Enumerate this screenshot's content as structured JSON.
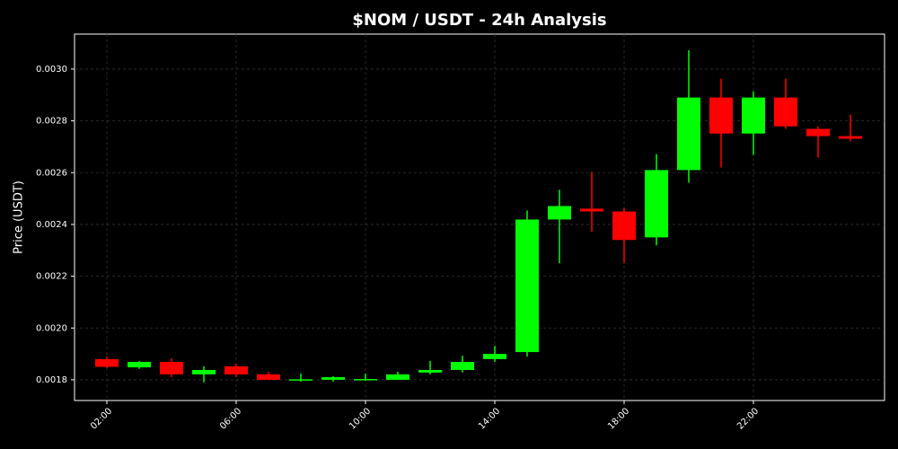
{
  "chart_data": {
    "type": "candlestick",
    "title": "$NOM / USDT - 24h Analysis",
    "y_label": "Price (USDT)",
    "categories": [
      "02:00",
      null,
      null,
      null,
      "06:00",
      null,
      null,
      null,
      "10:00",
      null,
      null,
      null,
      "14:00",
      null,
      null,
      null,
      "18:00",
      null,
      null,
      null,
      "22:00",
      null,
      null,
      null
    ],
    "open": [
      0.00188,
      0.001848,
      0.001869,
      0.001821,
      0.001852,
      0.001821,
      0.0018,
      0.0018,
      0.0018,
      0.0018,
      0.001828,
      0.001838,
      0.00188,
      0.001907,
      0.002419,
      0.002461,
      0.00245,
      0.00235,
      0.00261,
      0.00289,
      0.002751,
      0.00289,
      0.002769,
      0.002741
    ],
    "high": [
      0.00189,
      0.001873,
      0.001883,
      0.001852,
      0.001862,
      0.001831,
      0.001824,
      0.001814,
      0.001824,
      0.001831,
      0.001873,
      0.001893,
      0.001931,
      0.002454,
      0.002534,
      0.002603,
      0.002464,
      0.002672,
      0.003073,
      0.002963,
      0.002914,
      0.002963,
      0.002779,
      0.002824
    ],
    "low": [
      0.001845,
      0.001842,
      0.00181,
      0.00179,
      0.00181,
      0.0018,
      0.001793,
      0.001793,
      0.001797,
      0.0018,
      0.001821,
      0.001828,
      0.001869,
      0.00189,
      0.00225,
      0.002371,
      0.00225,
      0.002319,
      0.002561,
      0.00262,
      0.002668,
      0.002769,
      0.002658,
      0.00272
    ],
    "close": [
      0.00185,
      0.001869,
      0.001821,
      0.001838,
      0.001821,
      0.0018,
      0.001802,
      0.00181,
      0.001803,
      0.001821,
      0.001838,
      0.001869,
      0.0019,
      0.002419,
      0.002471,
      0.00245,
      0.00234,
      0.00261,
      0.00289,
      0.002751,
      0.00289,
      0.002779,
      0.002741,
      0.002731
    ],
    "up_color": "#00ff00",
    "down_color": "#ff0000",
    "ylim": [
      0.00172,
      0.003135
    ],
    "yticks": [
      0.0018,
      {
        "value": 0.002,
        "label": "0.0020"
      },
      0.0022,
      0.0024,
      0.0026,
      0.0028,
      {
        "value": 0.003,
        "label": "0.0030"
      }
    ],
    "grid": true
  }
}
